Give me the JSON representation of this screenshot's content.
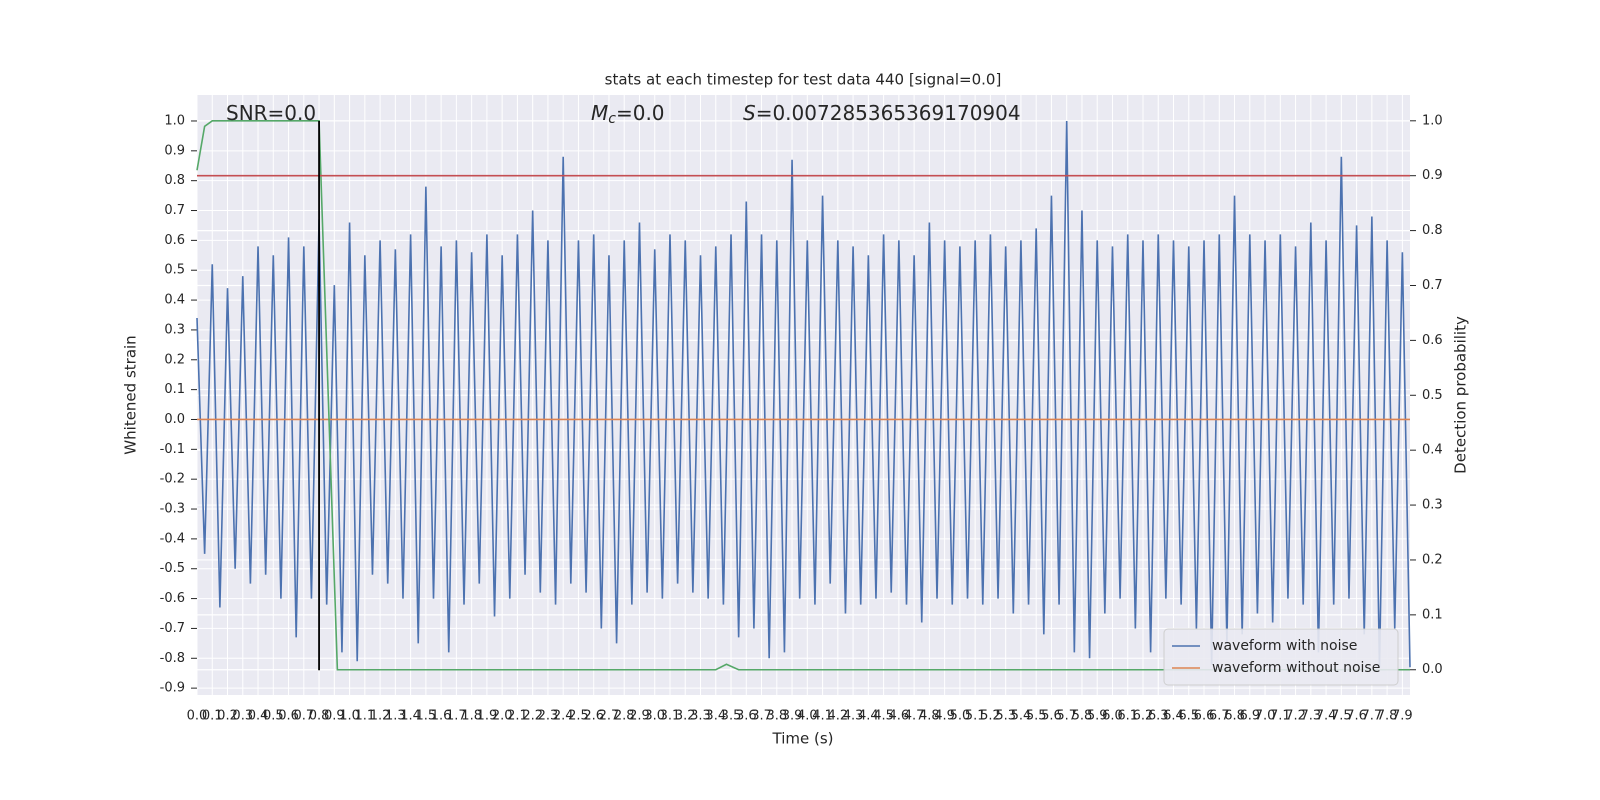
{
  "chart_data": {
    "type": "line",
    "title": "stats at each timestep for test data 440 [signal=0.0]",
    "x_label": "Time (s)",
    "y_label": "Whitened strain",
    "y2_label": "Detection probability",
    "annotations": [
      {
        "text": "SNR=0.0"
      },
      {
        "symbol": "M",
        "subscript": "c",
        "text": "=0.0"
      },
      {
        "symbol": "S",
        "text": "=0.007285365369170904"
      }
    ],
    "xlim": [
      0,
      7.95
    ],
    "ylim": [
      -0.923,
      1.087
    ],
    "y2lim": [
      -0.046,
      1.047
    ],
    "grid": true,
    "legend": "lower right",
    "xticks": [
      {
        "value": 0,
        "label": "0.0"
      },
      0.1,
      0.2,
      0.3,
      0.4,
      0.5,
      0.6,
      0.7,
      0.8,
      0.9,
      {
        "value": 1,
        "label": "1.0"
      },
      1.1,
      1.2,
      1.3,
      1.4,
      1.5,
      1.6,
      1.7,
      1.8,
      1.9,
      {
        "value": 2,
        "label": "2.0"
      },
      2.1,
      2.2,
      2.3,
      2.4,
      2.5,
      2.6,
      2.7,
      2.8,
      2.9,
      {
        "value": 3,
        "label": "3.0"
      },
      3.1,
      3.2,
      3.3,
      3.4,
      3.5,
      3.6,
      3.7,
      3.8,
      3.9,
      {
        "value": 4,
        "label": "4.0"
      },
      4.1,
      4.2,
      4.3,
      4.4,
      4.5,
      4.6,
      4.7,
      4.8,
      4.9,
      {
        "value": 5,
        "label": "5.0"
      },
      5.1,
      5.2,
      5.3,
      5.4,
      5.5,
      5.6,
      5.7,
      5.8,
      5.9,
      {
        "value": 6,
        "label": "6.0"
      },
      6.1,
      6.2,
      6.3,
      6.4,
      6.5,
      6.6,
      6.7,
      6.8,
      6.9,
      {
        "value": 7,
        "label": "7.0"
      },
      7.1,
      7.2,
      7.3,
      7.4,
      7.5,
      7.6,
      7.7,
      7.8,
      7.9
    ],
    "yticks": [
      -0.9,
      -0.8,
      -0.7,
      -0.6,
      -0.5,
      -0.4,
      -0.3,
      -0.2,
      -0.1,
      {
        "value": 0,
        "label": "0.0"
      },
      0.1,
      0.2,
      0.3,
      0.4,
      0.5,
      0.6,
      0.7,
      0.8,
      0.9,
      {
        "value": 1,
        "label": "1.0"
      }
    ],
    "y2ticks": [
      {
        "value": 0,
        "label": "0.0"
      },
      0.1,
      0.2,
      0.3,
      0.4,
      0.5,
      0.6,
      0.7,
      0.8,
      0.9,
      {
        "value": 1,
        "label": "1.0"
      }
    ],
    "series": [
      {
        "name": "waveform with noise",
        "color": "#4c72b0",
        "x": [
          0,
          0.05,
          0.1,
          0.15,
          0.2,
          0.25,
          0.3,
          0.35,
          0.4,
          0.45,
          0.5,
          0.55,
          0.6,
          0.65,
          0.7,
          0.75,
          0.8,
          0.85,
          0.9,
          0.95,
          1,
          1.05,
          1.1,
          1.15,
          1.2,
          1.25,
          1.3,
          1.35,
          1.4,
          1.45,
          1.5,
          1.55,
          1.6,
          1.65,
          1.7,
          1.75,
          1.8,
          1.85,
          1.9,
          1.95,
          2,
          2.05,
          2.1,
          2.15,
          2.2,
          2.25,
          2.3,
          2.35,
          2.4,
          2.45,
          2.5,
          2.55,
          2.6,
          2.65,
          2.7,
          2.75,
          2.8,
          2.85,
          2.9,
          2.95,
          3,
          3.05,
          3.1,
          3.15,
          3.2,
          3.25,
          3.3,
          3.35,
          3.4,
          3.45,
          3.5,
          3.55,
          3.6,
          3.65,
          3.7,
          3.75,
          3.8,
          3.85,
          3.9,
          3.95,
          4,
          4.05,
          4.1,
          4.15,
          4.2,
          4.25,
          4.3,
          4.35,
          4.4,
          4.45,
          4.5,
          4.55,
          4.6,
          4.65,
          4.7,
          4.75,
          4.8,
          4.85,
          4.9,
          4.95,
          5,
          5.05,
          5.1,
          5.15,
          5.2,
          5.25,
          5.3,
          5.35,
          5.4,
          5.45,
          5.5,
          5.55,
          5.6,
          5.65,
          5.7,
          5.75,
          5.8,
          5.85,
          5.9,
          5.95,
          6,
          6.05,
          6.1,
          6.15,
          6.2,
          6.25,
          6.3,
          6.35,
          6.4,
          6.45,
          6.5,
          6.55,
          6.6,
          6.65,
          6.7,
          6.75,
          6.8,
          6.85,
          6.9,
          6.95,
          7,
          7.05,
          7.1,
          7.15,
          7.2,
          7.25,
          7.3,
          7.35,
          7.4,
          7.45,
          7.5,
          7.55,
          7.6,
          7.65,
          7.7,
          7.75,
          7.8,
          7.85,
          7.9,
          7.95
        ],
        "values": [
          0.34,
          -0.45,
          0.52,
          -0.63,
          0.44,
          -0.5,
          0.48,
          -0.55,
          0.58,
          -0.52,
          0.55,
          -0.6,
          0.61,
          -0.73,
          0.58,
          -0.6,
          0.67,
          -0.62,
          0.45,
          -0.78,
          0.66,
          -0.81,
          0.55,
          -0.52,
          0.6,
          -0.55,
          0.57,
          -0.6,
          0.62,
          -0.75,
          0.78,
          -0.6,
          0.58,
          -0.78,
          0.6,
          -0.62,
          0.56,
          -0.55,
          0.62,
          -0.66,
          0.55,
          -0.6,
          0.62,
          -0.52,
          0.7,
          -0.58,
          0.6,
          -0.62,
          0.88,
          -0.55,
          0.6,
          -0.58,
          0.62,
          -0.7,
          0.55,
          -0.75,
          0.6,
          -0.62,
          0.66,
          -0.58,
          0.57,
          -0.6,
          0.62,
          -0.55,
          0.6,
          -0.58,
          0.55,
          -0.6,
          0.58,
          -0.62,
          0.62,
          -0.73,
          0.73,
          -0.7,
          0.62,
          -0.8,
          0.6,
          -0.78,
          0.87,
          -0.6,
          0.6,
          -0.62,
          0.75,
          -0.55,
          0.6,
          -0.65,
          0.58,
          -0.62,
          0.55,
          -0.6,
          0.62,
          -0.58,
          0.6,
          -0.62,
          0.55,
          -0.68,
          0.66,
          -0.6,
          0.6,
          -0.62,
          0.58,
          -0.6,
          0.6,
          -0.62,
          0.62,
          -0.6,
          0.58,
          -0.65,
          0.6,
          -0.62,
          0.64,
          -0.72,
          0.75,
          -0.62,
          1.0,
          -0.78,
          0.7,
          -0.8,
          0.6,
          -0.65,
          0.58,
          -0.6,
          0.62,
          -0.7,
          0.6,
          -0.78,
          0.62,
          -0.6,
          0.6,
          -0.62,
          0.58,
          -0.7,
          0.6,
          -0.82,
          0.62,
          -0.75,
          0.75,
          -0.72,
          0.62,
          -0.65,
          0.6,
          -0.68,
          0.62,
          -0.6,
          0.58,
          -0.62,
          0.66,
          -0.78,
          0.6,
          -0.62,
          0.88,
          -0.6,
          0.65,
          -0.72,
          0.68,
          -0.83,
          0.6,
          -0.7,
          0.56,
          -0.83
        ]
      },
      {
        "name": "waveform without noise",
        "color": "#dd8452",
        "x": [
          0,
          7.95
        ],
        "values": [
          0,
          0
        ]
      },
      {
        "color": "#55a868",
        "axis": "y2",
        "x": [
          0,
          0.05,
          0.1,
          0.8,
          0.92,
          3.4,
          3.47,
          3.55,
          7.95
        ],
        "values": [
          0.91,
          0.99,
          1.0,
          1.0,
          0.0,
          0.0,
          0.01,
          0.0,
          0.0
        ]
      }
    ],
    "threshold": {
      "value": 0.9,
      "axis": "y2",
      "color": "#c44e52"
    },
    "vline": {
      "x": 0.8,
      "y": [
        -0.84,
        1.0
      ],
      "color": "#000000"
    }
  }
}
